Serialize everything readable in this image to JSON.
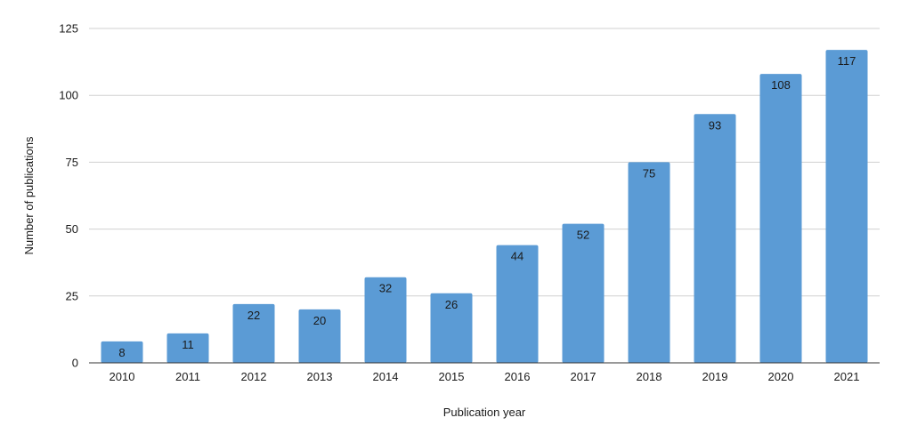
{
  "chart_data": {
    "type": "bar",
    "title": "",
    "xlabel": "Publication year",
    "ylabel": "Number of publications",
    "categories": [
      "2010",
      "2011",
      "2012",
      "2013",
      "2014",
      "2015",
      "2016",
      "2017",
      "2018",
      "2019",
      "2020",
      "2021"
    ],
    "series": [
      {
        "values": [
          8,
          11,
          22,
          20,
          32,
          26,
          44,
          52,
          75,
          93,
          108,
          117
        ]
      }
    ],
    "ylim": [
      0,
      125
    ],
    "yticks": [
      "0",
      "25",
      "50",
      "75",
      "100",
      "125"
    ],
    "grid": true,
    "legend": "none",
    "bar_color": "#5b9bd5",
    "data_labels": true
  }
}
